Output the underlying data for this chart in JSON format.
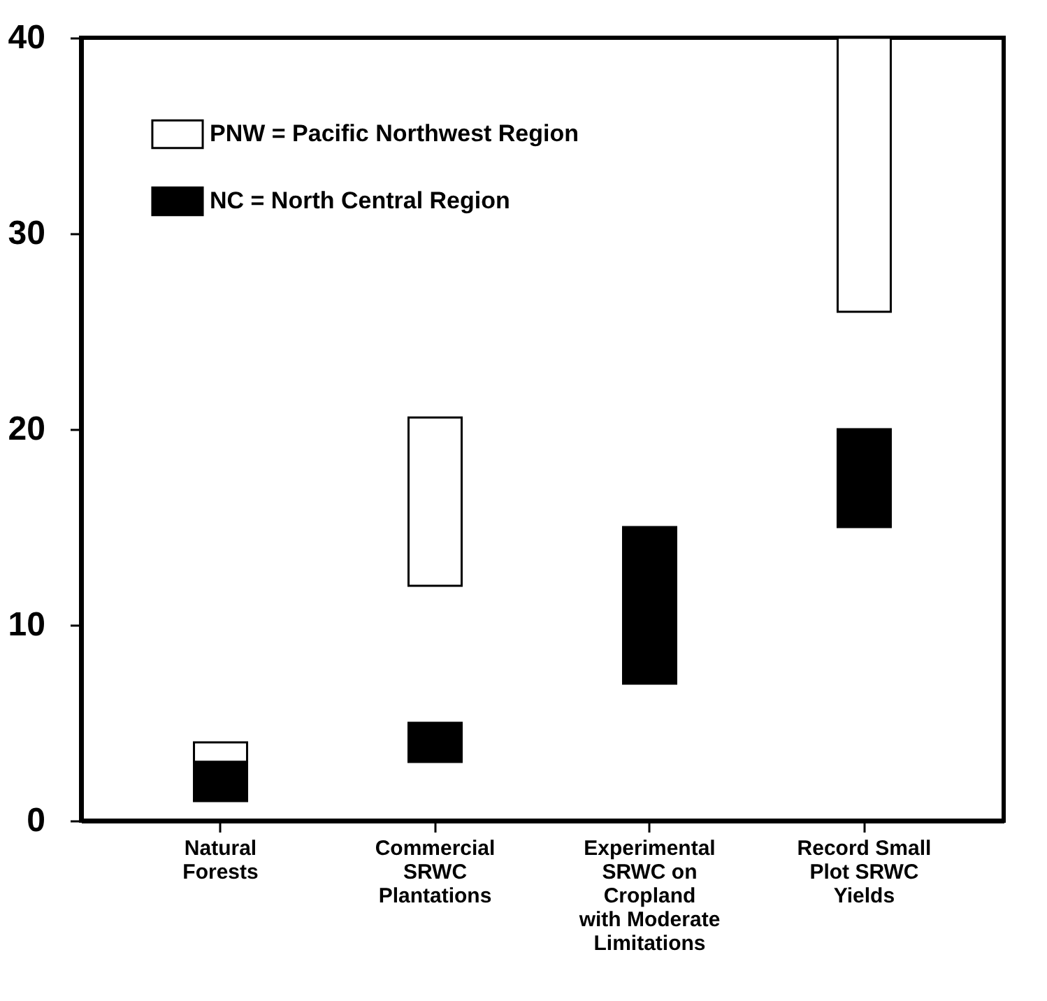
{
  "chart_data": {
    "type": "bar",
    "categories": [
      "Natural\nForests",
      "Commercial\nSRWC\nPlantations",
      "Experimental\nSRWC on\nCropland\nwith Moderate\nLimitations",
      "Record Small\nPlot SRWC\nYields"
    ],
    "series": [
      {
        "name": "PNW = Pacific Northwest Region",
        "color": "#ffffff",
        "values": [
          1,
          8.6,
          null,
          14
        ],
        "base": [
          3,
          12,
          null,
          26
        ]
      },
      {
        "name": "NC = North Central Region",
        "color": "#000000",
        "values": [
          2,
          2,
          8,
          5
        ],
        "base": [
          1,
          3,
          7,
          15
        ]
      }
    ],
    "ylim": [
      0,
      40
    ],
    "yticks": [
      0,
      10,
      20,
      30,
      40
    ],
    "grid": false,
    "legend": "top left"
  }
}
